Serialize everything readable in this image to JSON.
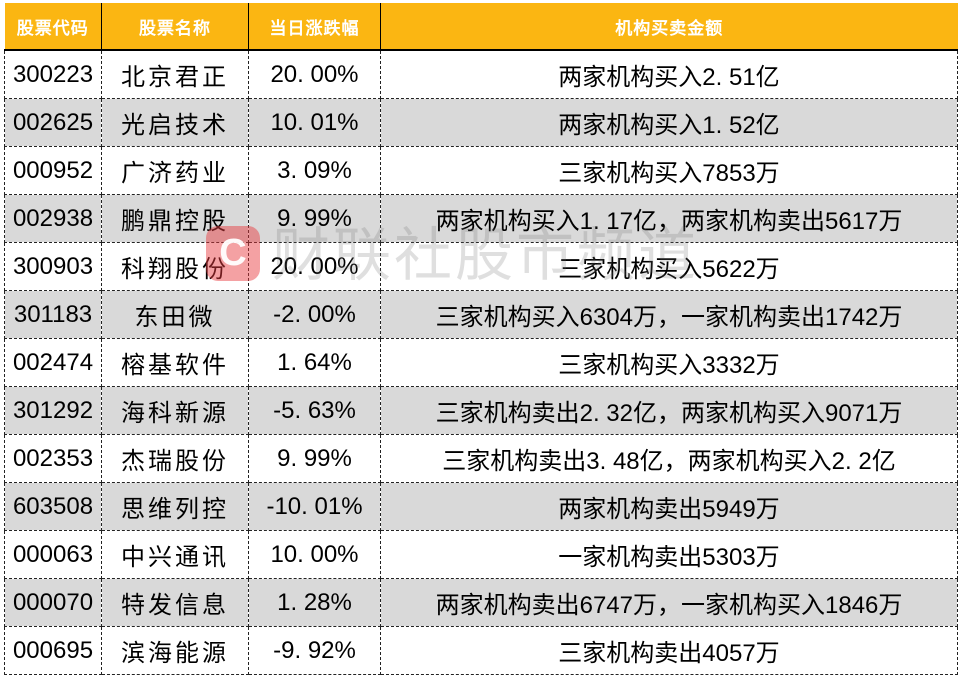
{
  "chart_data": {
    "type": "table",
    "columns": [
      "股票代码",
      "股票名称",
      "当日涨跌幅",
      "机构买卖金额"
    ],
    "rows": [
      [
        "300223",
        "北京君正",
        "20. 00%",
        "两家机构买入2. 51亿"
      ],
      [
        "002625",
        "光启技术",
        "10. 01%",
        "两家机构买入1. 52亿"
      ],
      [
        "000952",
        "广济药业",
        "3. 09%",
        "三家机构买入7853万"
      ],
      [
        "002938",
        "鹏鼎控股",
        "9. 99%",
        "两家机构买入1. 17亿，两家机构卖出5617万"
      ],
      [
        "300903",
        "科翔股份",
        "20. 00%",
        "三家机构买入5622万"
      ],
      [
        "301183",
        "东田微",
        "-2. 00%",
        "三家机构买入6304万，一家机构卖出1742万"
      ],
      [
        "002474",
        "榕基软件",
        "1. 64%",
        "三家机构买入3332万"
      ],
      [
        "301292",
        "海科新源",
        "-5. 63%",
        "三家机构卖出2. 32亿，两家机构买入9071万"
      ],
      [
        "002353",
        "杰瑞股份",
        "9. 99%",
        "三家机构卖出3. 48亿，两家机构买入2. 2亿"
      ],
      [
        "603508",
        "思维列控",
        "-10. 01%",
        "两家机构卖出5949万"
      ],
      [
        "000063",
        "中兴通讯",
        "10. 00%",
        "一家机构卖出5303万"
      ],
      [
        "000070",
        "特发信息",
        "1. 28%",
        "两家机构卖出6747万，一家机构买入1846万"
      ],
      [
        "000695",
        "滨海能源",
        "-9. 92%",
        "三家机构卖出4057万"
      ]
    ],
    "title": "",
    "layout_hints": {
      "grid": "dashed",
      "alternating_rows": true,
      "header_style": "amber-bold-white"
    }
  },
  "watermark": {
    "logo_text": "C",
    "text": "财联社股市频道"
  },
  "colors": {
    "header_bg": "#FBB612",
    "header_text": "#FFFFFF",
    "row_bg": "#FFFFFF",
    "row_alt_bg": "#D9D9D9",
    "border": "#222222",
    "watermark_red": "#E83A3E"
  }
}
